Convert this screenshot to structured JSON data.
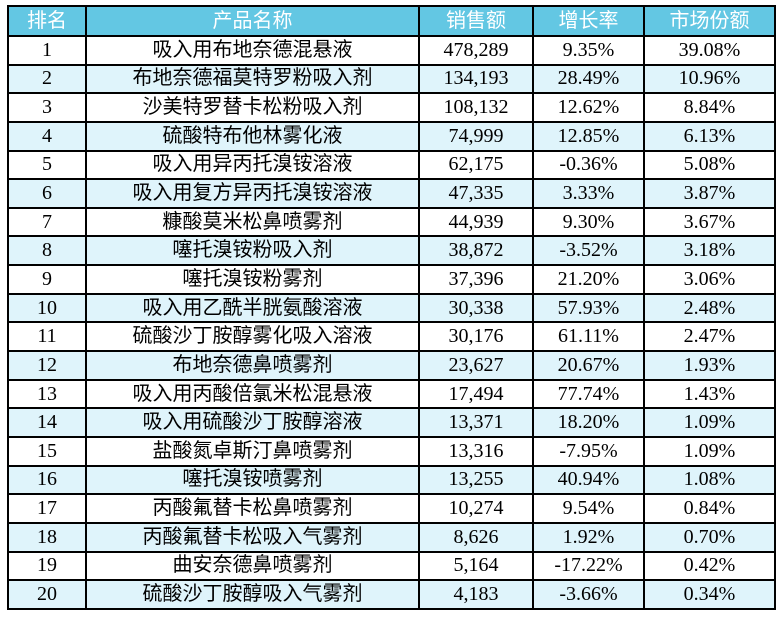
{
  "colors": {
    "header_bg": "#63C7E3",
    "header_text": "#FFFFFF",
    "row_bg": "#FFFFFF",
    "row_alt_bg": "#DFF4FB",
    "border": "#000000"
  },
  "table": {
    "columns": [
      {
        "key": "rank",
        "label": "排名"
      },
      {
        "key": "product",
        "label": "产品名称"
      },
      {
        "key": "sales",
        "label": "销售额"
      },
      {
        "key": "growth",
        "label": "增长率"
      },
      {
        "key": "share",
        "label": "市场份额"
      }
    ],
    "rows": [
      {
        "rank": "1",
        "product": "吸入用布地奈德混悬液",
        "sales": "478,289",
        "growth": "9.35%",
        "share": "39.08%"
      },
      {
        "rank": "2",
        "product": "布地奈德福莫特罗粉吸入剂",
        "sales": "134,193",
        "growth": "28.49%",
        "share": "10.96%"
      },
      {
        "rank": "3",
        "product": "沙美特罗替卡松粉吸入剂",
        "sales": "108,132",
        "growth": "12.62%",
        "share": "8.84%"
      },
      {
        "rank": "4",
        "product": "硫酸特布他林雾化液",
        "sales": "74,999",
        "growth": "12.85%",
        "share": "6.13%"
      },
      {
        "rank": "5",
        "product": "吸入用异丙托溴铵溶液",
        "sales": "62,175",
        "growth": "-0.36%",
        "share": "5.08%"
      },
      {
        "rank": "6",
        "product": "吸入用复方异丙托溴铵溶液",
        "sales": "47,335",
        "growth": "3.33%",
        "share": "3.87%"
      },
      {
        "rank": "7",
        "product": "糠酸莫米松鼻喷雾剂",
        "sales": "44,939",
        "growth": "9.30%",
        "share": "3.67%"
      },
      {
        "rank": "8",
        "product": "噻托溴铵粉吸入剂",
        "sales": "38,872",
        "growth": "-3.52%",
        "share": "3.18%"
      },
      {
        "rank": "9",
        "product": "噻托溴铵粉雾剂",
        "sales": "37,396",
        "growth": "21.20%",
        "share": "3.06%"
      },
      {
        "rank": "10",
        "product": "吸入用乙酰半胱氨酸溶液",
        "sales": "30,338",
        "growth": "57.93%",
        "share": "2.48%"
      },
      {
        "rank": "11",
        "product": "硫酸沙丁胺醇雾化吸入溶液",
        "sales": "30,176",
        "growth": "61.11%",
        "share": "2.47%"
      },
      {
        "rank": "12",
        "product": "布地奈德鼻喷雾剂",
        "sales": "23,627",
        "growth": "20.67%",
        "share": "1.93%"
      },
      {
        "rank": "13",
        "product": "吸入用丙酸倍氯米松混悬液",
        "sales": "17,494",
        "growth": "77.74%",
        "share": "1.43%"
      },
      {
        "rank": "14",
        "product": "吸入用硫酸沙丁胺醇溶液",
        "sales": "13,371",
        "growth": "18.20%",
        "share": "1.09%"
      },
      {
        "rank": "15",
        "product": "盐酸氮卓斯汀鼻喷雾剂",
        "sales": "13,316",
        "growth": "-7.95%",
        "share": "1.09%"
      },
      {
        "rank": "16",
        "product": "噻托溴铵喷雾剂",
        "sales": "13,255",
        "growth": "40.94%",
        "share": "1.08%"
      },
      {
        "rank": "17",
        "product": "丙酸氟替卡松鼻喷雾剂",
        "sales": "10,274",
        "growth": "9.54%",
        "share": "0.84%"
      },
      {
        "rank": "18",
        "product": "丙酸氟替卡松吸入气雾剂",
        "sales": "8,626",
        "growth": "1.92%",
        "share": "0.70%"
      },
      {
        "rank": "19",
        "product": "曲安奈德鼻喷雾剂",
        "sales": "5,164",
        "growth": "-17.22%",
        "share": "0.42%"
      },
      {
        "rank": "20",
        "product": "硫酸沙丁胺醇吸入气雾剂",
        "sales": "4,183",
        "growth": "-3.66%",
        "share": "0.34%"
      }
    ]
  }
}
